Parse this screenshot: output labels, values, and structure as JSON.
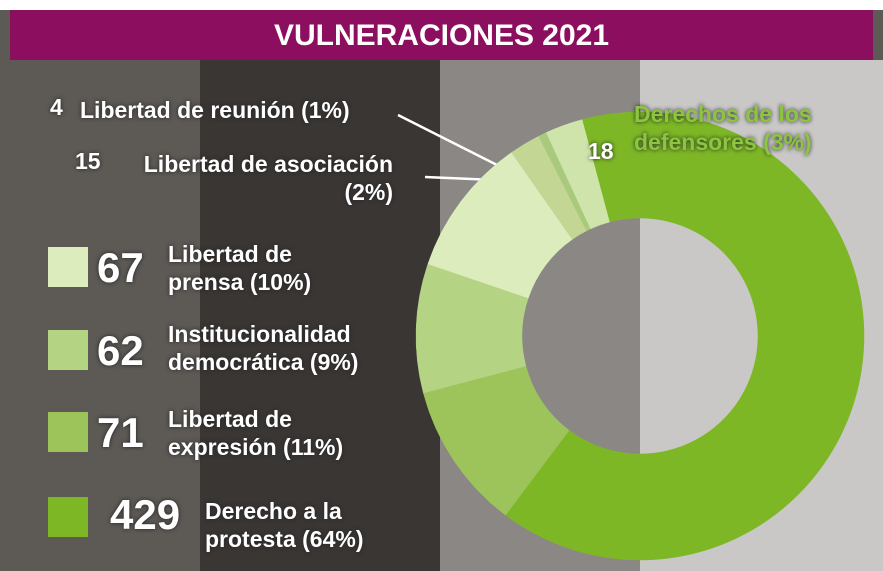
{
  "chart_data": {
    "type": "pie",
    "donut": true,
    "title": "VULNERACIONES 2021",
    "categories": [
      "Derecho a la protesta",
      "Libertad de expresión",
      "Institucionalidad democrática",
      "Libertad de prensa",
      "Libertad de asociación",
      "Libertad de reunión",
      "Derechos de los defensores"
    ],
    "values": [
      429,
      71,
      62,
      67,
      15,
      4,
      18
    ],
    "percent_labels": [
      "(64%)",
      "(11%)",
      "(9%)",
      "(10%)",
      "(2%)",
      "(1%)",
      "(3%)"
    ],
    "colors": [
      "#7db726",
      "#9cc45a",
      "#b4d484",
      "#ddecbd",
      "#c3d693",
      "#a9c97c",
      "#cfe4ab"
    ]
  }
}
